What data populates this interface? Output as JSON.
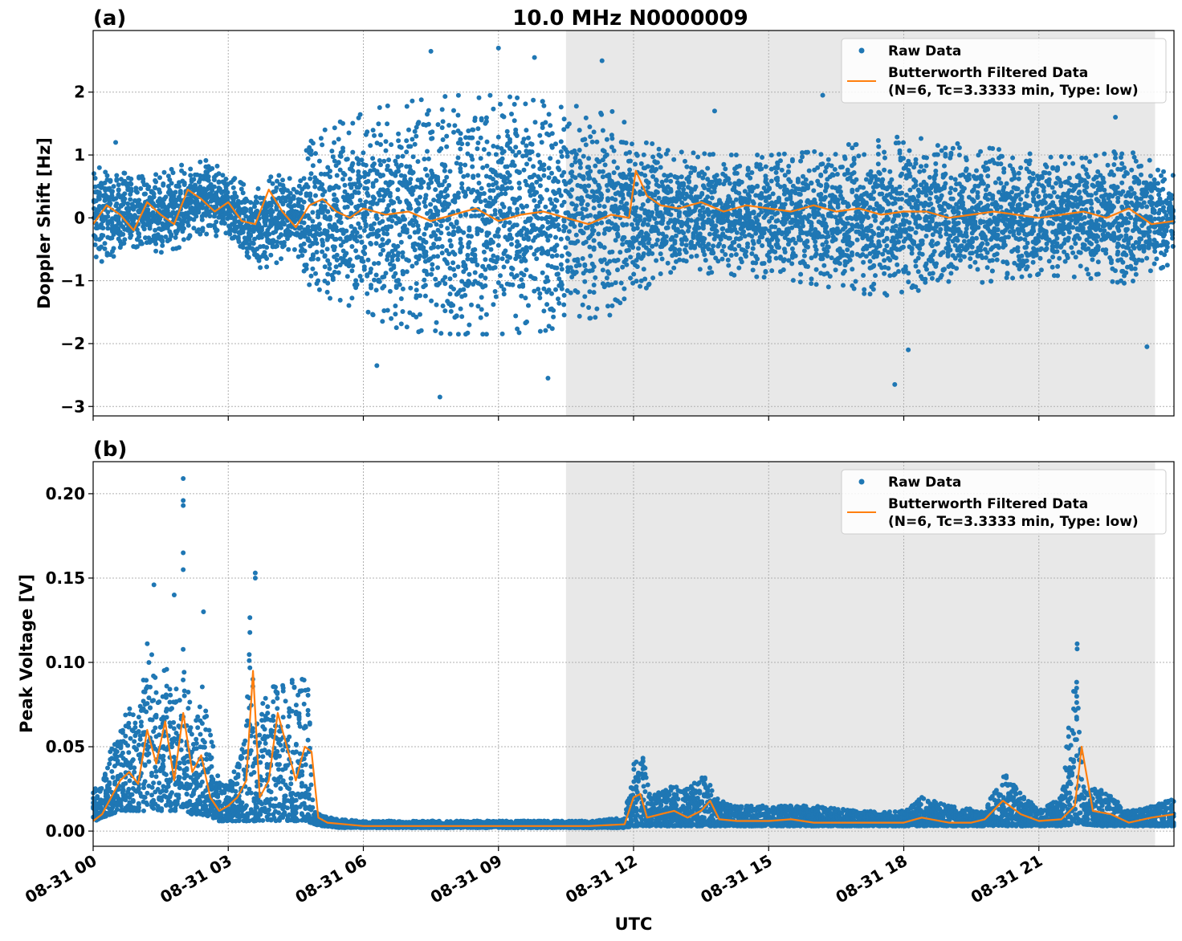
{
  "figure_title": "10.0 MHz N0000009",
  "xlabel": "UTC",
  "x_tick_labels": [
    "08-31 00",
    "08-31 03",
    "08-31 06",
    "08-31 09",
    "08-31 12",
    "08-31 15",
    "08-31 18",
    "08-31 21"
  ],
  "legend": {
    "raw_label": "Raw Data",
    "filtered_label_line1": "Butterworth Filtered Data",
    "filtered_label_line2": "(N=6, Tc=3.3333 min, Type: low)",
    "placement": "top-right"
  },
  "colors": {
    "raw": "#1f77b4",
    "filtered": "#ff7f0e",
    "shade": "#e8e8e8",
    "grid": "#b0b0b0"
  },
  "chart_data": [
    {
      "panel": "(a)",
      "type": "scatter",
      "ylabel": "Doppler Shift [Hz]",
      "xlim_hours": [
        0,
        24
      ],
      "ylim": [
        -3.15,
        2.98
      ],
      "yticks": [
        2,
        1,
        0,
        -1,
        -2,
        -3
      ],
      "ytick_labels": [
        "2",
        "1",
        "0",
        "−1",
        "−2",
        "−3"
      ],
      "grid": true,
      "shaded_interval_hours": [
        10.5,
        23.58
      ],
      "series": [
        {
          "name": "Raw Data",
          "kind": "scatter-envelope",
          "x_hours": [
            0,
            0.5,
            1,
            1.5,
            2,
            2.5,
            3,
            3.5,
            4,
            4.5,
            4.8,
            5.5,
            6,
            7,
            8,
            9,
            10,
            11,
            11.9,
            12.5,
            13,
            14,
            15,
            16,
            17,
            18,
            19,
            20,
            21,
            22,
            23,
            24
          ],
          "upper": [
            0.85,
            0.75,
            0.65,
            0.7,
            0.85,
            0.95,
            0.7,
            0.45,
            0.7,
            0.6,
            1.2,
            1.6,
            1.7,
            1.85,
            1.95,
            1.95,
            1.85,
            1.75,
            1.65,
            1.1,
            1.05,
            1.0,
            1.0,
            1.05,
            1.2,
            1.3,
            1.2,
            1.1,
            1.0,
            0.95,
            1.1,
            0.7
          ],
          "lower": [
            -0.75,
            -0.6,
            -0.45,
            -0.55,
            -0.5,
            -0.25,
            -0.45,
            -0.85,
            -0.75,
            -0.5,
            -1.1,
            -1.4,
            -1.6,
            -1.8,
            -1.85,
            -1.85,
            -1.8,
            -1.6,
            -1.5,
            -0.9,
            -0.85,
            -0.9,
            -0.95,
            -1.05,
            -1.2,
            -1.25,
            -1.1,
            -1.0,
            -0.9,
            -0.95,
            -1.05,
            -0.7
          ],
          "outliers": [
            [
              7.5,
              2.65
            ],
            [
              9,
              2.7
            ],
            [
              9.8,
              2.55
            ],
            [
              11.3,
              2.5
            ],
            [
              7.7,
              -2.85
            ],
            [
              10.1,
              -2.55
            ],
            [
              17.8,
              -2.65
            ],
            [
              0.5,
              1.2
            ],
            [
              13.8,
              1.7
            ],
            [
              16.2,
              1.95
            ],
            [
              22.7,
              1.6
            ],
            [
              23.4,
              -2.05
            ],
            [
              18.1,
              -2.1
            ],
            [
              6.3,
              -2.35
            ]
          ]
        },
        {
          "name": "Butterworth Filtered Data",
          "kind": "line",
          "x_hours": [
            0,
            0.3,
            0.6,
            0.9,
            1.2,
            1.5,
            1.8,
            2.1,
            2.4,
            2.7,
            3.0,
            3.3,
            3.6,
            3.9,
            4.2,
            4.5,
            4.8,
            5.1,
            5.4,
            5.7,
            6.0,
            6.5,
            7,
            7.5,
            8,
            8.5,
            9,
            9.5,
            10,
            10.5,
            11,
            11.5,
            11.9,
            12.05,
            12.3,
            12.6,
            13,
            13.5,
            14,
            14.5,
            15,
            15.5,
            16,
            16.5,
            17,
            17.5,
            18,
            18.5,
            19,
            19.5,
            20,
            20.5,
            21,
            21.5,
            22,
            22.5,
            23,
            23.5,
            24
          ],
          "y": [
            -0.1,
            0.2,
            0.05,
            -0.2,
            0.25,
            0.05,
            -0.1,
            0.45,
            0.3,
            0.1,
            0.25,
            -0.05,
            -0.1,
            0.45,
            0.1,
            -0.15,
            0.2,
            0.3,
            0.1,
            0.0,
            0.15,
            0.05,
            0.1,
            -0.05,
            0.05,
            0.15,
            -0.05,
            0.05,
            0.1,
            0.0,
            -0.1,
            0.05,
            0.0,
            0.75,
            0.35,
            0.2,
            0.15,
            0.25,
            0.1,
            0.2,
            0.15,
            0.1,
            0.2,
            0.1,
            0.15,
            0.05,
            0.1,
            0.1,
            0.0,
            0.05,
            0.1,
            0.05,
            0.0,
            0.05,
            0.1,
            0.0,
            0.15,
            -0.1,
            -0.05
          ]
        }
      ]
    },
    {
      "panel": "(b)",
      "type": "scatter",
      "ylabel": "Peak Voltage [V]",
      "xlim_hours": [
        0,
        24
      ],
      "ylim": [
        -0.009,
        0.219
      ],
      "yticks": [
        0.0,
        0.05,
        0.1,
        0.15,
        0.2
      ],
      "ytick_labels": [
        "0.00",
        "0.05",
        "0.10",
        "0.15",
        "0.20"
      ],
      "grid": true,
      "shaded_interval_hours": [
        10.5,
        23.58
      ],
      "series": [
        {
          "name": "Raw Data",
          "kind": "scatter-envelope",
          "x_hours": [
            0,
            0.2,
            0.4,
            0.6,
            0.8,
            1.0,
            1.2,
            1.4,
            1.6,
            1.8,
            2.0,
            2.2,
            2.4,
            2.6,
            2.8,
            3.0,
            3.2,
            3.4,
            3.5,
            3.6,
            3.8,
            4.0,
            4.2,
            4.4,
            4.6,
            4.75,
            4.9,
            5.1,
            5.5,
            6,
            7,
            8,
            9,
            10,
            11,
            11.8,
            12.0,
            12.2,
            12.4,
            12.8,
            13.2,
            13.6,
            13.8,
            14.2,
            15,
            16,
            17,
            18,
            18.4,
            19,
            19.8,
            20.2,
            21,
            21.5,
            21.8,
            22,
            22.4,
            23,
            23.5,
            24
          ],
          "upper": [
            0.025,
            0.03,
            0.05,
            0.06,
            0.075,
            0.07,
            0.12,
            0.09,
            0.1,
            0.08,
            0.11,
            0.065,
            0.09,
            0.06,
            0.03,
            0.03,
            0.04,
            0.06,
            0.145,
            0.06,
            0.08,
            0.09,
            0.095,
            0.095,
            0.09,
            0.1,
            0.012,
            0.009,
            0.007,
            0.006,
            0.006,
            0.006,
            0.006,
            0.006,
            0.006,
            0.008,
            0.04,
            0.045,
            0.02,
            0.028,
            0.025,
            0.035,
            0.02,
            0.015,
            0.015,
            0.015,
            0.012,
            0.012,
            0.02,
            0.015,
            0.012,
            0.035,
            0.012,
            0.02,
            0.105,
            0.025,
            0.025,
            0.012,
            0.015,
            0.02
          ],
          "lower": [
            0.005,
            0.008,
            0.01,
            0.012,
            0.012,
            0.012,
            0.012,
            0.012,
            0.012,
            0.012,
            0.012,
            0.01,
            0.01,
            0.008,
            0.006,
            0.006,
            0.006,
            0.006,
            0.006,
            0.006,
            0.006,
            0.006,
            0.006,
            0.006,
            0.006,
            0.006,
            0.004,
            0.003,
            0.002,
            0.002,
            0.002,
            0.002,
            0.002,
            0.002,
            0.002,
            0.002,
            0.003,
            0.003,
            0.003,
            0.003,
            0.003,
            0.003,
            0.003,
            0.003,
            0.003,
            0.003,
            0.003,
            0.003,
            0.003,
            0.003,
            0.003,
            0.003,
            0.003,
            0.003,
            0.004,
            0.004,
            0.003,
            0.003,
            0.003,
            0.003
          ],
          "outliers": [
            [
              2.0,
              0.209
            ],
            [
              2.0,
              0.196
            ],
            [
              2.0,
              0.193
            ],
            [
              2.0,
              0.165
            ],
            [
              2.0,
              0.155
            ],
            [
              1.35,
              0.146
            ],
            [
              1.8,
              0.14
            ],
            [
              3.6,
              0.153
            ],
            [
              3.6,
              0.15
            ],
            [
              2.45,
              0.13
            ],
            [
              21.85,
              0.111
            ],
            [
              21.85,
              0.108
            ]
          ]
        },
        {
          "name": "Butterworth Filtered Data",
          "kind": "line",
          "x_hours": [
            0,
            0.2,
            0.4,
            0.6,
            0.8,
            1.0,
            1.2,
            1.4,
            1.6,
            1.8,
            2.0,
            2.2,
            2.4,
            2.6,
            2.8,
            3.0,
            3.2,
            3.4,
            3.55,
            3.7,
            3.9,
            4.1,
            4.3,
            4.5,
            4.7,
            4.85,
            5.0,
            5.2,
            5.6,
            6,
            7,
            8,
            9,
            10,
            11,
            11.8,
            12.0,
            12.15,
            12.3,
            12.6,
            12.9,
            13.2,
            13.5,
            13.7,
            13.9,
            14.3,
            15,
            15.5,
            16,
            17,
            18,
            18.4,
            19,
            19.5,
            19.8,
            20.2,
            20.6,
            21,
            21.5,
            21.8,
            21.95,
            22.2,
            22.6,
            23,
            23.5,
            24
          ],
          "y": [
            0.006,
            0.01,
            0.02,
            0.03,
            0.035,
            0.028,
            0.06,
            0.04,
            0.065,
            0.03,
            0.07,
            0.035,
            0.045,
            0.02,
            0.012,
            0.015,
            0.02,
            0.03,
            0.095,
            0.02,
            0.03,
            0.07,
            0.05,
            0.03,
            0.05,
            0.047,
            0.008,
            0.005,
            0.004,
            0.003,
            0.003,
            0.003,
            0.003,
            0.003,
            0.003,
            0.004,
            0.02,
            0.022,
            0.008,
            0.01,
            0.012,
            0.008,
            0.012,
            0.018,
            0.007,
            0.006,
            0.006,
            0.007,
            0.005,
            0.005,
            0.005,
            0.008,
            0.005,
            0.005,
            0.007,
            0.018,
            0.01,
            0.006,
            0.007,
            0.015,
            0.05,
            0.012,
            0.01,
            0.005,
            0.008,
            0.01
          ]
        }
      ]
    }
  ]
}
